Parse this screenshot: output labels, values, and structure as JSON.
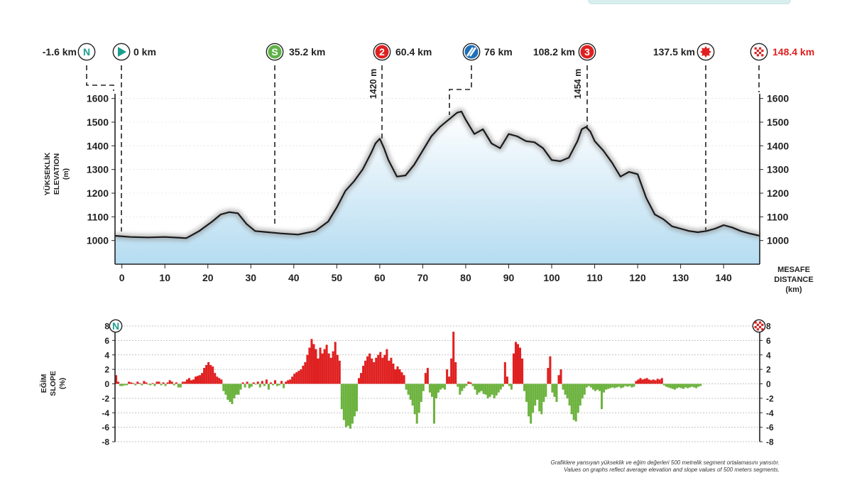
{
  "chart_data": [
    {
      "type": "area",
      "ylabel_lines": [
        "YÜKSEKLİK",
        "ELEVATION",
        "(m)"
      ],
      "xlabel_lines": [
        "MESAFE",
        "DISTANCE",
        "(km)"
      ],
      "xlim": [
        -1.6,
        148.4
      ],
      "ylim": [
        900,
        1620
      ],
      "y_ticks": [
        1000,
        1100,
        1200,
        1300,
        1400,
        1500,
        1600
      ],
      "x_ticks": [
        0,
        10,
        20,
        30,
        40,
        50,
        60,
        70,
        80,
        90,
        100,
        110,
        120,
        130,
        140
      ],
      "x": [
        -1.6,
        2,
        6,
        10,
        15,
        18,
        21,
        23,
        25,
        27,
        29,
        31,
        34,
        37,
        41,
        45,
        48,
        50,
        52,
        54,
        56,
        58,
        59,
        60,
        61,
        62,
        64,
        66,
        68,
        70,
        72,
        74,
        76,
        78,
        79,
        80,
        82,
        84,
        86,
        88,
        90,
        92,
        94,
        96,
        98,
        100,
        102,
        104,
        106,
        107,
        108,
        109,
        110,
        112,
        114,
        116,
        118,
        120,
        122,
        124,
        126,
        128,
        130,
        132,
        134,
        136,
        138,
        140,
        142,
        144,
        146,
        148.4
      ],
      "elevation": [
        1020,
        1015,
        1013,
        1015,
        1010,
        1040,
        1080,
        1110,
        1120,
        1115,
        1070,
        1040,
        1035,
        1030,
        1025,
        1040,
        1080,
        1140,
        1210,
        1250,
        1300,
        1370,
        1410,
        1430,
        1390,
        1340,
        1270,
        1275,
        1320,
        1380,
        1440,
        1480,
        1510,
        1540,
        1545,
        1510,
        1450,
        1470,
        1410,
        1390,
        1450,
        1440,
        1420,
        1415,
        1390,
        1340,
        1335,
        1350,
        1420,
        1470,
        1480,
        1460,
        1420,
        1380,
        1330,
        1270,
        1290,
        1280,
        1180,
        1110,
        1090,
        1060,
        1050,
        1040,
        1035,
        1040,
        1050,
        1065,
        1055,
        1040,
        1030,
        1020
      ],
      "series": [
        {
          "name": "",
          "color": "#000000"
        }
      ]
    },
    {
      "type": "bar",
      "ylabel_lines": [
        "EĞİM",
        "SLOPE",
        "(%)"
      ],
      "ylim": [
        -8,
        8
      ],
      "y_ticks": [
        8,
        6,
        4,
        2,
        0,
        -2,
        -4,
        -6,
        -8
      ],
      "segment_km": 0.5,
      "x_start": -1.6,
      "positive_color": "#e02020",
      "negative_color": "#6db33f",
      "slope": [
        1.2,
        0.3,
        -0.3,
        -0.3,
        -0.2,
        -0.2,
        0.3,
        0.2,
        0.1,
        -0.2,
        0.3,
        0.1,
        -0.2,
        0.4,
        0.2,
        -0.1,
        -0.2,
        0.1,
        -0.3,
        0.3,
        0.3,
        -0.2,
        0.2,
        -0.3,
        0.2,
        0.5,
        0.3,
        -0.2,
        0.2,
        -0.5,
        -0.5,
        0.3,
        0.3,
        0.6,
        0.8,
        0.5,
        0.6,
        1.0,
        1.1,
        1.2,
        1.5,
        2.2,
        2.6,
        3.0,
        2.6,
        2.4,
        1.5,
        1.0,
        0.8,
        0.6,
        -1.0,
        -1.5,
        -2.2,
        -2.5,
        -2.8,
        -2.0,
        -1.5,
        -1.5,
        -0.8,
        0.2,
        -0.5,
        0.3,
        -0.6,
        -0.4,
        0.2,
        -0.1,
        0.3,
        -0.5,
        0.4,
        -0.3,
        0.6,
        -0.8,
        0.2,
        -0.2,
        0.5,
        -0.3,
        -0.2,
        0.4,
        -0.6,
        0.3,
        0.5,
        0.6,
        1.0,
        1.4,
        1.6,
        1.8,
        2.0,
        2.5,
        3.0,
        4.0,
        5.0,
        6.2,
        5.5,
        4.8,
        3.5,
        5.0,
        4.2,
        4.8,
        5.4,
        4.2,
        3.6,
        4.5,
        5.8,
        4.0,
        3.2,
        -3.5,
        -5.0,
        -6.0,
        -5.8,
        -6.2,
        -5.5,
        -4.5,
        -3.8,
        0.8,
        1.5,
        2.5,
        3.2,
        3.8,
        4.2,
        3.5,
        3.0,
        3.6,
        4.0,
        4.4,
        3.6,
        4.0,
        4.8,
        3.2,
        3.6,
        2.8,
        2.0,
        2.4,
        2.0,
        1.6,
        1.2,
        -0.8,
        -1.5,
        -2.2,
        -3.0,
        -4.2,
        -5.5,
        -4.0,
        -2.5,
        -1.0,
        1.5,
        2.2,
        -1.2,
        -1.8,
        -5.5,
        -2.0,
        -1.2,
        -0.8,
        -0.6,
        -0.8,
        2.0,
        1.0,
        3.5,
        7.2,
        3.0,
        -0.4,
        -1.5,
        -1.0,
        -0.6,
        -0.3,
        0.3,
        0.2,
        -0.3,
        -0.8,
        -1.5,
        -1.2,
        -1.0,
        -1.4,
        -1.5,
        -2.0,
        -1.8,
        -1.5,
        -2.0,
        -1.6,
        -1.2,
        -0.8,
        -0.4,
        3.0,
        1.0,
        -0.3,
        -0.8,
        4.2,
        5.8,
        5.5,
        5.0,
        3.5,
        -1.0,
        -2.5,
        -4.5,
        -5.5,
        -4.0,
        -3.0,
        -2.2,
        -3.8,
        -4.2,
        -2.5,
        -1.8,
        2.2,
        3.8,
        -1.2,
        -1.8,
        -2.5,
        1.2,
        2.0,
        -0.8,
        -1.5,
        -2.0,
        -3.0,
        -4.2,
        -5.0,
        -5.2,
        -4.0,
        -3.0,
        -2.0,
        -1.5,
        -0.5,
        -0.3,
        -0.5,
        -0.8,
        -1.0,
        -0.8,
        -1.0,
        -3.5,
        -1.2,
        -0.8,
        -0.7,
        -0.6,
        -0.5,
        -0.6,
        -0.5,
        -0.4,
        -0.6,
        -0.5,
        -0.3,
        -0.4,
        -0.3,
        -0.5,
        -0.4,
        0.4,
        0.6,
        0.8,
        0.6,
        0.7,
        0.8,
        0.6,
        0.5,
        0.6,
        0.5,
        0.7,
        0.6,
        0.8,
        -0.2,
        -0.4,
        -0.5,
        -0.6,
        -0.7,
        -0.8,
        -0.6,
        -0.5,
        -0.6,
        -0.7,
        -0.5,
        -0.6,
        -0.5,
        -0.4,
        -0.5,
        -0.6,
        -0.4,
        -0.3
      ]
    }
  ],
  "markers": [
    {
      "km_label": "-1.6 km",
      "icon": "neutral-start-icon",
      "symbol": "N",
      "color": "#1a9e8f"
    },
    {
      "km_label": "0 km",
      "icon": "start-flag-icon",
      "symbol": "▶",
      "color": "#1a9e8f"
    },
    {
      "km_label": "35.2 km",
      "icon": "sprint-icon",
      "symbol": "S",
      "color": "#5fb246"
    },
    {
      "km_label": "60.4 km",
      "icon": "climb-category-2-icon",
      "symbol": "2",
      "color": "#e02020"
    },
    {
      "km_label": "76 km",
      "icon": "feed-zone-icon",
      "symbol": "//",
      "color": "#1d6fb8"
    },
    {
      "km_label": "108.2 km",
      "icon": "climb-category-3-icon",
      "symbol": "3",
      "color": "#e02020"
    },
    {
      "km_label": "137.5 km",
      "icon": "bonus-sprint-icon",
      "symbol": "✹",
      "color": "#e02020"
    },
    {
      "km_label": "148.4 km",
      "icon": "finish-flag-icon",
      "symbol": "▦",
      "color": "#e02020"
    }
  ],
  "peak_labels": [
    "1420 m",
    "1454 m"
  ],
  "slope_markers": {
    "left_icon": "neutral-start-icon",
    "left_symbol": "N",
    "right_icon": "finish-flag-icon",
    "right_symbol": "▦"
  },
  "footnote": {
    "line1": "Grafiklere yansıyan yükseklik ve eğim değerleri 500 metrelik segment ortalamasını yansıtır.",
    "line2": "Values on graphs reflect average elevation and slope values of 500 meters segments."
  }
}
